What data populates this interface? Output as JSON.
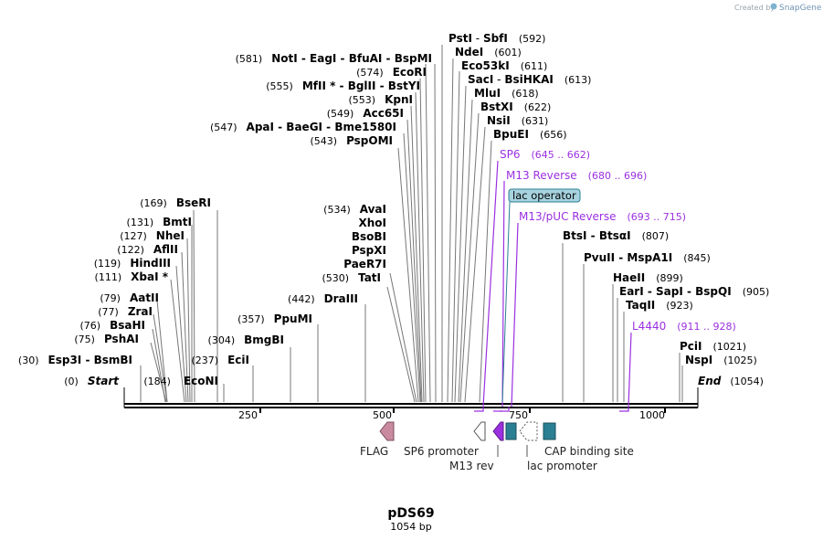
{
  "credit": {
    "prefix": "Created by",
    "brand": "SnapGene"
  },
  "plasmid": {
    "name": "pDS69",
    "length_label": "1054 bp"
  },
  "ticks": [
    "250",
    "500",
    "750",
    "1000"
  ],
  "enzymes_right": [
    {
      "name": "PstI",
      "sep": "-",
      "name2": "SbfI",
      "pos": "(592)"
    },
    {
      "name": "NdeI",
      "pos": "(601)"
    },
    {
      "name": "Eco53kI",
      "pos": "(611)"
    },
    {
      "name": "SacI",
      "sep": "-",
      "name2": "BsiHKAI",
      "pos": "(613)"
    },
    {
      "name": "MluI",
      "pos": "(618)"
    },
    {
      "name": "BstXI",
      "pos": "(622)"
    },
    {
      "name": "NsiI",
      "pos": "(631)"
    },
    {
      "name": "BpuEI",
      "pos": "(656)"
    }
  ],
  "enzymes_left": [
    {
      "pos": "(581)",
      "names": "NotI  -  EagI  -  BfuAI  -  BspMI"
    },
    {
      "pos": "(574)",
      "names": "EcoRI"
    },
    {
      "pos": "(555)",
      "names": "MfII *  -  BglII  -  BstYI"
    },
    {
      "pos": "(553)",
      "names": "KpnI"
    },
    {
      "pos": "(549)",
      "names": "Acc65I"
    },
    {
      "pos": "(547)",
      "names": "ApaI  -  BaeGI  -  Bme1580I"
    },
    {
      "pos": "(543)",
      "names": "PspOMI"
    }
  ],
  "enzymes_mid": [
    {
      "pos": "(534)",
      "names": "AvaI"
    },
    {
      "pos": "",
      "names": "XhoI"
    },
    {
      "pos": "",
      "names": "BsoBI"
    },
    {
      "pos": "",
      "names": "PspXI"
    },
    {
      "pos": "",
      "names": "PaeR7I"
    },
    {
      "pos": "(530)",
      "names": "TatI"
    },
    {
      "pos": "(442)",
      "names": "DraIII"
    },
    {
      "pos": "(357)",
      "names": "PpuMI"
    },
    {
      "pos": "(304)",
      "names": "BmgBI"
    },
    {
      "pos": "(237)",
      "names": "EciI"
    }
  ],
  "enzymes_far_left": [
    {
      "pos": "(169)",
      "names": "BseRI"
    },
    {
      "pos": "(131)",
      "names": "BmtI"
    },
    {
      "pos": "(127)",
      "names": "NheI"
    },
    {
      "pos": "(122)",
      "names": "AflII"
    },
    {
      "pos": "(119)",
      "names": "HindIII"
    },
    {
      "pos": "(111)",
      "names": "XbaI *"
    },
    {
      "pos": "(79)",
      "names": "AatII"
    },
    {
      "pos": "(77)",
      "names": "ZraI"
    },
    {
      "pos": "(76)",
      "names": "BsaHI"
    },
    {
      "pos": "(75)",
      "names": "PshAI"
    },
    {
      "pos": "(30)",
      "names": "Esp3I  -  BsmBI"
    },
    {
      "pos": "(184)",
      "names": "EcoNI"
    }
  ],
  "start": {
    "pos": "(0)",
    "label": "Start"
  },
  "end": {
    "label": "End",
    "pos": "(1054)"
  },
  "enzymes_far_right": [
    {
      "names": "BtsI  -  BtsαI",
      "pos": "(807)"
    },
    {
      "names": "PvuII  -  MspA1I",
      "pos": "(845)"
    },
    {
      "names": "HaeII",
      "pos": "(899)"
    },
    {
      "names": "EarI  -  SapI  -  BspQI",
      "pos": "(905)"
    },
    {
      "names": "TaqII",
      "pos": "(923)"
    },
    {
      "names": "PciI",
      "pos": "(1021)"
    },
    {
      "names": "NspI",
      "pos": "(1025)"
    }
  ],
  "primers": [
    {
      "name": "SP6",
      "range": "(645 .. 662)"
    },
    {
      "name": "M13 Reverse",
      "range": "(680 .. 696)"
    },
    {
      "name": "M13/pUC Reverse",
      "range": "(693 .. 715)"
    },
    {
      "name": "L4440",
      "range": "(911 .. 928)"
    }
  ],
  "lac_operator": "lac operator",
  "features": {
    "flag": "FLAG",
    "sp6_promoter": "SP6 promoter",
    "m13_rev": "M13 rev",
    "lac_promoter": "lac promoter",
    "cap_site": "CAP binding site"
  },
  "colors": {
    "primer": "#9b30e0",
    "flag": "#c98aa0",
    "teal": "#2a7f93",
    "m13": "#9b30e0",
    "operator_fill": "#a7d3df"
  }
}
